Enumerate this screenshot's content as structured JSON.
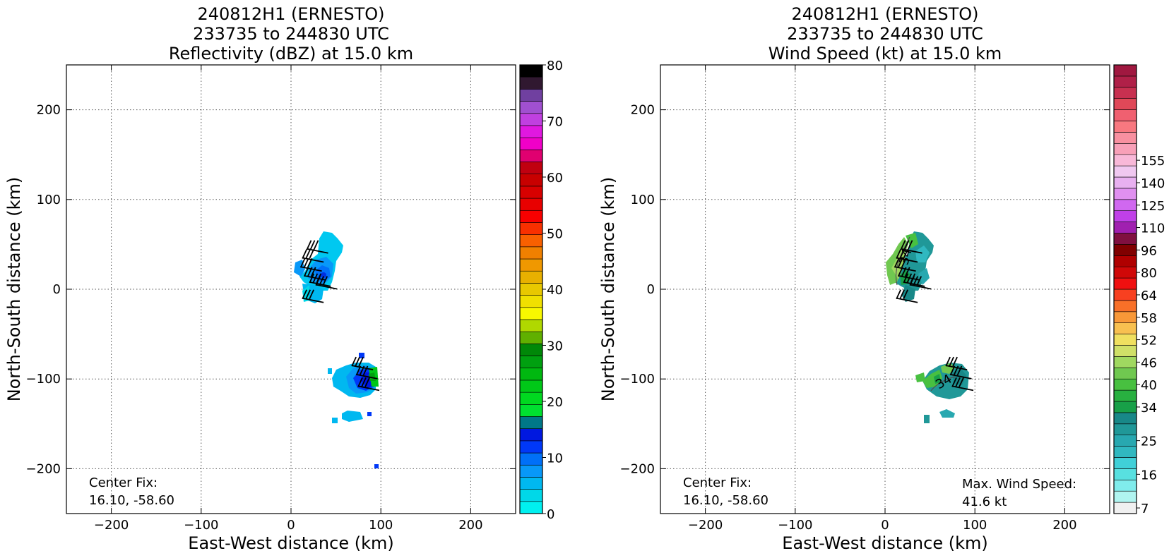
{
  "chart_data": [
    {
      "type": "heatmap",
      "title": [
        "240812H1 (ERNESTO)",
        "233735 to 244830 UTC",
        "Reflectivity (dBZ) at 15.0 km"
      ],
      "xlabel": "East-West distance (km)",
      "ylabel": "North-South distance (km)",
      "xlim": [
        -250,
        250
      ],
      "ylim": [
        -250,
        250
      ],
      "xticks": [
        -200,
        -100,
        0,
        100,
        200
      ],
      "yticks": [
        -200,
        -100,
        0,
        100,
        200
      ],
      "grid": true,
      "colorbar": {
        "min": 0,
        "max": 80,
        "tick_values": [
          0,
          10,
          20,
          30,
          40,
          50,
          60,
          70,
          80
        ],
        "colors": [
          "#00f0f0",
          "#00d8e8",
          "#00b8f0",
          "#0898f8",
          "#0070f8",
          "#0038f8",
          "#0018e0",
          "#007888",
          "#00e030",
          "#00d820",
          "#00c818",
          "#00b810",
          "#00a010",
          "#008808",
          "#60b000",
          "#b0d800",
          "#f8f800",
          "#f0e000",
          "#e8c800",
          "#e8b000",
          "#f09800",
          "#f08000",
          "#f86000",
          "#f83000",
          "#f80000",
          "#e80000",
          "#d80000",
          "#c80000",
          "#c00010",
          "#e00070",
          "#f000c8",
          "#e018e0",
          "#c040e0",
          "#a050d0",
          "#7040a0",
          "#301830",
          "#000000"
        ]
      },
      "annotation_lines": [
        "Center Fix:",
        "16.10, -58.60"
      ],
      "echoes": [
        {
          "region": "north",
          "dbz_range": [
            0,
            14
          ]
        },
        {
          "region": "south",
          "dbz_range": [
            0,
            25
          ]
        }
      ],
      "wind_barbs_km": [
        [
          35,
          45
        ],
        [
          30,
          35
        ],
        [
          28,
          25
        ],
        [
          32,
          15
        ],
        [
          38,
          8
        ],
        [
          45,
          5
        ],
        [
          30,
          -10
        ],
        [
          85,
          -85
        ],
        [
          90,
          -95
        ],
        [
          92,
          -108
        ]
      ]
    },
    {
      "type": "heatmap",
      "title": [
        "240812H1 (ERNESTO)",
        "233735 to 244830 UTC",
        "Wind Speed (kt) at 15.0 km"
      ],
      "xlabel": "East-West distance (km)",
      "ylabel": "North-South distance (km)",
      "xlim": [
        -250,
        250
      ],
      "ylim": [
        -250,
        250
      ],
      "xticks": [
        -200,
        -100,
        0,
        100,
        200
      ],
      "yticks": [
        -200,
        -100,
        0,
        100,
        200
      ],
      "grid": true,
      "colorbar": {
        "tick_labels": [
          "7",
          "16",
          "25",
          "34",
          "40",
          "46",
          "52",
          "58",
          "64",
          "80",
          "96",
          "110",
          "125",
          "140",
          "155"
        ],
        "tick_bins": [
          0,
          3,
          6,
          9,
          11,
          13,
          15,
          17,
          19,
          21,
          23,
          25,
          27,
          29,
          31
        ],
        "colors": [
          "#f0f0f0",
          "#b0f4f0",
          "#80ecec",
          "#58e0e0",
          "#40d0d8",
          "#30b8c0",
          "#28a8b0",
          "#209898",
          "#188888",
          "#18a048",
          "#28b040",
          "#48c040",
          "#70c850",
          "#a0d860",
          "#d0e068",
          "#f0e060",
          "#f8c050",
          "#f89838",
          "#f87028",
          "#f84020",
          "#f01010",
          "#d00808",
          "#b00000",
          "#800000",
          "#801040",
          "#a020b0",
          "#c040e8",
          "#d068f0",
          "#e090f0",
          "#e8b0f0",
          "#f0c8f0",
          "#f8b8d8",
          "#f8a0b8",
          "#f890a0",
          "#f87880",
          "#f06070",
          "#e04858",
          "#c83050",
          "#b02048",
          "#a01840"
        ]
      },
      "annotation_lines": [
        "Center Fix:",
        "16.10, -58.60"
      ],
      "max_wind_lines": [
        "Max. Wind Speed:",
        "41.6 kt"
      ],
      "contour_labels": [
        "34",
        "34"
      ],
      "max_wind_kt": 41.6,
      "wind_barbs_km": [
        [
          35,
          45
        ],
        [
          30,
          35
        ],
        [
          28,
          25
        ],
        [
          32,
          15
        ],
        [
          38,
          8
        ],
        [
          45,
          5
        ],
        [
          30,
          -10
        ],
        [
          85,
          -85
        ],
        [
          90,
          -95
        ],
        [
          92,
          -108
        ]
      ]
    }
  ]
}
